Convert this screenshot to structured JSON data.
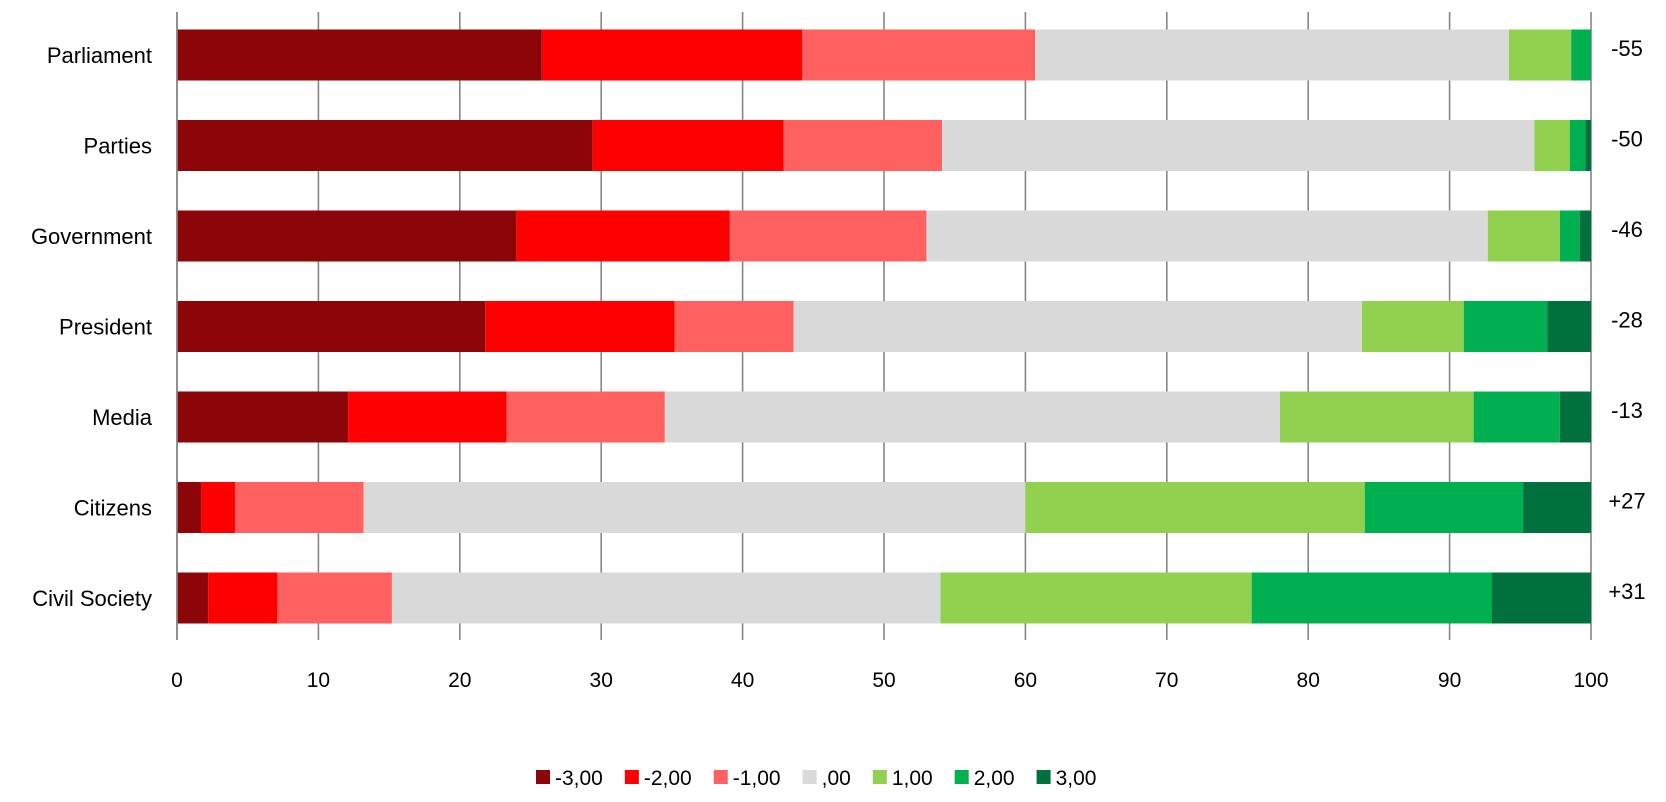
{
  "chart_data": {
    "type": "bar",
    "orientation": "horizontal",
    "stacked": true,
    "title": "",
    "xlabel": "",
    "ylabel": "",
    "xlim": [
      0,
      100
    ],
    "x_ticks": [
      "0",
      "10",
      "20",
      "30",
      "40",
      "50",
      "60",
      "70",
      "80",
      "90",
      "100"
    ],
    "grid": true,
    "legend_position": "bottom",
    "categories": [
      "Parliament",
      "Parties",
      "Government",
      "President",
      "Media",
      "Citizens",
      "Civil Society"
    ],
    "net_scores": [
      "-55",
      "-50",
      "-46",
      "-28",
      "-13",
      "+27",
      "+31"
    ],
    "series": [
      {
        "name": "-3,00",
        "color": "#8B0509",
        "values": [
          25.8,
          29.4,
          24.0,
          21.8,
          12.1,
          1.7,
          2.2
        ]
      },
      {
        "name": "-2,00",
        "color": "#FF0000",
        "values": [
          18.4,
          13.5,
          15.1,
          13.4,
          11.2,
          2.4,
          4.9
        ]
      },
      {
        "name": "-1,00",
        "color": "#FF6161",
        "values": [
          16.5,
          11.2,
          13.9,
          8.4,
          11.2,
          9.1,
          8.1
        ]
      },
      {
        "name": ",00",
        "color": "#D9D9D9",
        "values": [
          33.5,
          41.9,
          39.7,
          40.2,
          43.5,
          46.8,
          38.8
        ]
      },
      {
        "name": "1,00",
        "color": "#92D050",
        "values": [
          4.4,
          2.5,
          5.1,
          7.2,
          13.7,
          24.0,
          22.0
        ]
      },
      {
        "name": "2,00",
        "color": "#00B050",
        "values": [
          1.4,
          1.1,
          1.4,
          5.9,
          6.1,
          11.2,
          17.0
        ]
      },
      {
        "name": "3,00",
        "color": "#00703C",
        "values": [
          0.0,
          0.4,
          0.8,
          3.1,
          2.2,
          4.8,
          7.0
        ]
      }
    ]
  }
}
